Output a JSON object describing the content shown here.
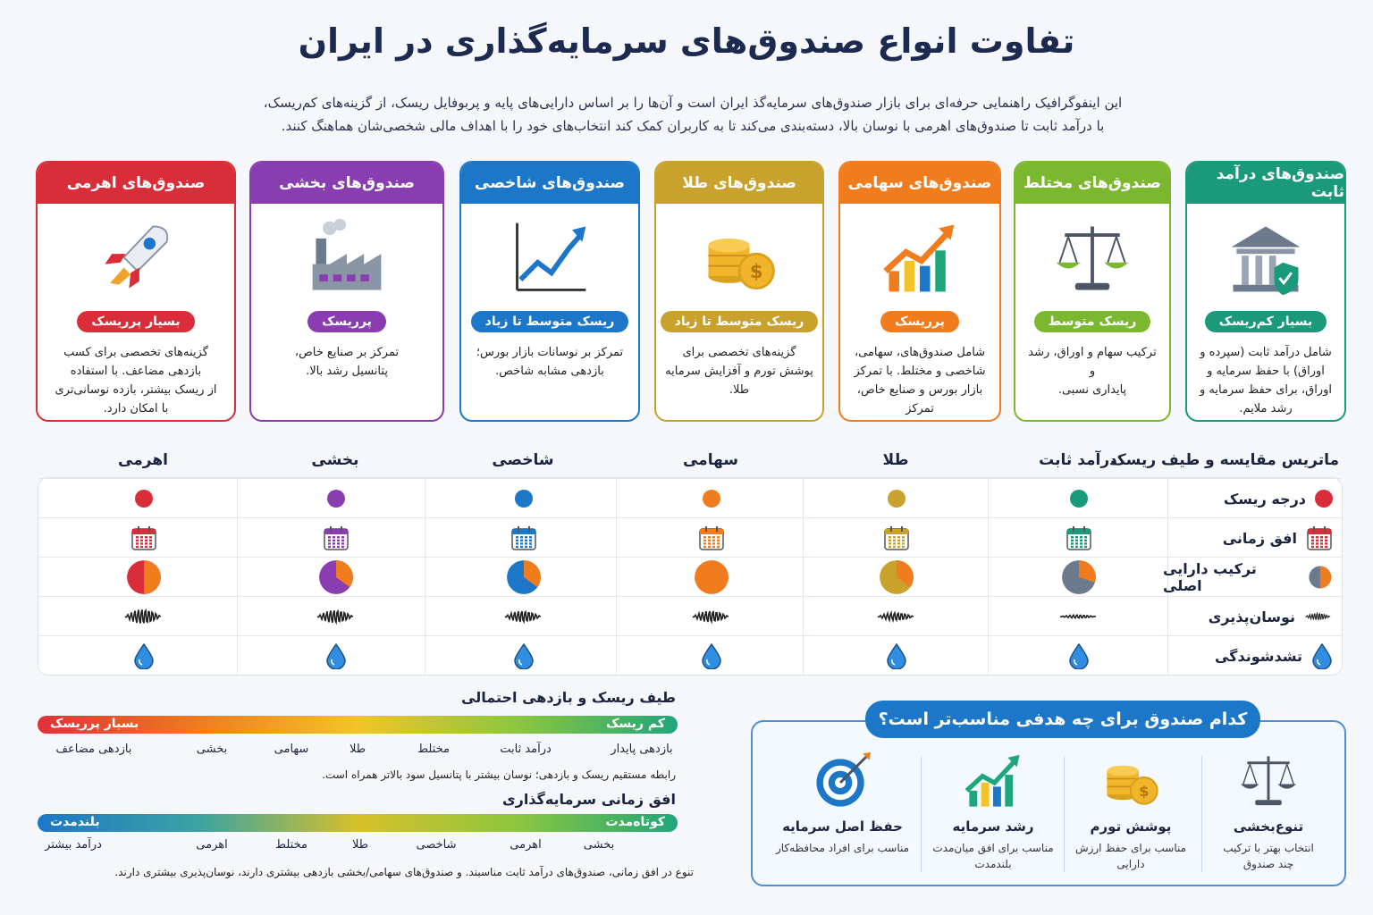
{
  "title": "تفاوت انواع صندوق‌های سرمایه‌گذاری در ایران",
  "intro": {
    "line1": "این اینفوگرافیک راهنمایی حرفه‌ای برای بازار صندوق‌های سرمایه‌گذ ایران است و آن‌ها را بر اساس دارایی‌های پایه و پربوفایل ریسک، از گزینه‌های کم‌ریسک،",
    "line2": "با درآمد ثابت تا صندوق‌های اهرمی با نوسان بالا، دسته‌بندی می‌کند تا به کاربران کمک کند انتخاب‌های خود را با اهداف مالی شخصی‌شان هماهنگ کنند."
  },
  "colors": {
    "fixed": "#1a9a7a",
    "mixed": "#7cb82f",
    "equity": "#f07c1e",
    "gold": "#c9a22e",
    "index": "#1c77c9",
    "sector": "#8a3db0",
    "leveraged": "#d92e3a"
  },
  "cards": [
    {
      "title": "صندوق‌های درآمد ثابت",
      "badge": "بسیار کم‌ریسک",
      "icon": "bank-shield-icon",
      "desc": [
        "شامل درآمد ثابت (سپرده و",
        "اوراق) با حفظ سرمایه و",
        "اوراق، برای حفظ سرمایه و",
        "رشد ملایم."
      ]
    },
    {
      "title": "صندوق‌های مختلط",
      "badge": "ریسک متوسط",
      "icon": "scale-icon",
      "desc": [
        "ترکیب سهام و اوراق، رشد و",
        "پایداری نسبی."
      ]
    },
    {
      "title": "صندوق‌های سهامی",
      "badge": "پرریسک",
      "icon": "growth-chart-icon",
      "desc": [
        "شامل صندوق‌های، سهامی،",
        "شاخصی و مختلط. با تمرکز",
        "بازار بورس و صنایع خاص، تمرکز",
        "بازدهی بلندمدت."
      ]
    },
    {
      "title": "صندوق‌های طلا",
      "badge": "ریسک متوسط تا زیاد",
      "icon": "gold-coins-icon",
      "desc": [
        "گزینه‌های تخصصی برای",
        "پوشش تورم و آفزایش سرمایه",
        "طلا."
      ]
    },
    {
      "title": "صندوق‌های شاخصی",
      "badge": "ریسک متوسط تا زیاد",
      "icon": "line-chart-icon",
      "desc": [
        "تمرکز بر نوسانات بازار بورس؛",
        "بازدهی مشابه شاخص."
      ]
    },
    {
      "title": "صندوق‌های بخشی",
      "badge": "پرریسک",
      "icon": "factory-icon",
      "desc": [
        "تمرکز بر صنایع خاص،",
        "پتانسیل رشد بالا."
      ]
    },
    {
      "title": "صندوق‌های اهرمی",
      "badge": "بسیار پرریسک",
      "icon": "rocket-icon",
      "desc": [
        "گزینه‌های تخصصی برای کسب",
        "بازدهی مضاعف. با استفاده",
        "از ریسک بیشتر، بازده نوسانی‌تری",
        "با امکان دارد."
      ]
    }
  ],
  "matrix": {
    "title": "ماتریس مقایسه و طیف ریسک",
    "columns": [
      "درآمد ثابت",
      "طلا",
      "سهامی",
      "شاخصی",
      "بخشی",
      "اهرمی"
    ],
    "column_colors": [
      "#1a9a7a",
      "#c9a22e",
      "#f07c1e",
      "#1c77c9",
      "#8a3db0",
      "#d92e3a"
    ],
    "rows": [
      {
        "label": "درجه ریسک",
        "icon": "risk-dot-icon"
      },
      {
        "label": "افق زمانی",
        "icon": "calendar-icon"
      },
      {
        "label": "ترکیب دارایی اصلی",
        "icon": "pie-chart-icon"
      },
      {
        "label": "نوسان‌پذیری",
        "icon": "wave-icon"
      },
      {
        "label": "تشدشوندگی",
        "icon": "droplet-icon"
      }
    ]
  },
  "risk_spectrum": {
    "title": "طیف ریسک و بازدهی احتمالی",
    "low": "کم ریسک",
    "high": "بسیار پرریسک",
    "ticks": [
      "بازدهی پایدار",
      "درآمد ثابت",
      "مختلط",
      "طلا",
      "سهامی",
      "بخشی",
      "بازدهی مضاعف"
    ],
    "note": "رابطه مستقیم ریسک و بازدهی؛ نوسان بیشتر با پتانسیل سود بالاتر همراه است."
  },
  "horizon_spectrum": {
    "title": "افق زمانی سرمایه‌گذاری",
    "short": "کوتاه‌مدت",
    "long": "بلندمدت",
    "ticks": [
      "بخشی",
      "اهرمی",
      "شاخصی",
      "طلا",
      "مختلط",
      "اهرمی",
      "درآمد بیشتر"
    ],
    "note": "تنوع در افق زمانی، صندوق‌های درآمد ثابت مناسبند. و صندوق‌های سهامی/بخشی بازدهی بیشتری دارند، نوسان‌پذیری بیشتری دارند."
  },
  "goals": {
    "title": "کدام صندوق برای چه هدفی مناسب‌تر است؟",
    "items": [
      {
        "name": "تنوع‌بخشی",
        "desc": [
          "انتخاب بهتر با ترکیب",
          "چند صندوق"
        ],
        "icon": "scale-icon"
      },
      {
        "name": "پوشش تورم",
        "desc": [
          "مناسب برای حفظ ارزش",
          "دارایی"
        ],
        "icon": "gold-coins-icon"
      },
      {
        "name": "رشد سرمایه",
        "desc": [
          "مناسب برای افق میان‌مدت",
          "بلندمدت"
        ],
        "icon": "growth-chart-icon"
      },
      {
        "name": "حفظ اصل سرمایه",
        "desc": [
          "مناسب برای افراد محافظه‌کار"
        ],
        "icon": "target-icon"
      }
    ]
  }
}
